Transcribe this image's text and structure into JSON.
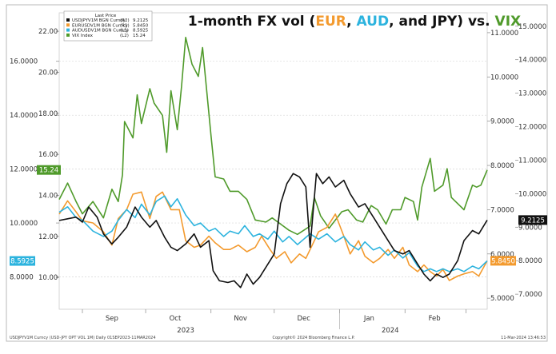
{
  "title": {
    "prefix": "1-month FX vol (",
    "eur": "EUR",
    "sep1": ", ",
    "aud": "AUD",
    "sep2": ", and ",
    "jpy": "JPY",
    "mid": ") vs. ",
    "vix": "VIX",
    "colors": {
      "base": "#111111",
      "eur": "#f39a2e",
      "aud": "#2cb3de",
      "vix": "#4f9a2a"
    }
  },
  "legend": {
    "header": "Last Price",
    "rows": [
      {
        "label": "USDJPYV1M BGN Curncy",
        "axis": "(R2)",
        "value": "9.2125",
        "color": "#111111"
      },
      {
        "label": "EURUSDV1M BGN Curncy",
        "axis": "(R1)",
        "value": "5.8450",
        "color": "#f39a2e"
      },
      {
        "label": "AUDUSDV1M BGN Curncy",
        "axis": "(L1)",
        "value": "8.5925",
        "color": "#2cb3de"
      },
      {
        "label": "VIX Index",
        "axis": "(L2)",
        "value": "15.24",
        "color": "#4f9a2a"
      }
    ]
  },
  "footer": {
    "left": "USDJPYV1M Curncy (USD-JPY OPT VOL 1M)  Daily 01SEP2023-11MAR2024",
    "center": "Copyright© 2024 Bloomberg Finance L.P.",
    "right": "11-Mar-2024 13:46:53"
  },
  "chart_data": {
    "type": "line",
    "x_range": [
      "2023-08-21",
      "2024-03-11"
    ],
    "x_ticks_months": [
      "Sep",
      "Oct",
      "Nov",
      "Dec",
      "Jan",
      "Feb"
    ],
    "x_ticks_years": [
      "2023",
      "2024"
    ],
    "axes": {
      "L1": {
        "ticks": [
          "8.0000",
          "10.0000",
          "12.0000",
          "14.0000",
          "16.0000"
        ],
        "range": [
          6.8,
          17.8
        ]
      },
      "L2": {
        "ticks": [
          "10.00",
          "12.00",
          "14.00",
          "16.00",
          "18.00",
          "20.00",
          "22.00"
        ],
        "range": [
          8.45,
          22.9
        ]
      },
      "R1": {
        "ticks": [
          "5.0000",
          "6.0000",
          "7.0000",
          "8.0000",
          "9.0000",
          "10.0000",
          "11.0000"
        ],
        "range": [
          4.75,
          11.45
        ]
      },
      "R2": {
        "ticks": [
          "7.0000",
          "8.0000",
          "9.0000",
          "10.0000",
          "11.0000",
          "12.0000",
          "13.0000",
          "14.0000",
          "15.0000"
        ],
        "range": [
          6.55,
          15.4
        ]
      }
    },
    "last_value_tags": [
      {
        "series": "VIX Index",
        "axis": "L2",
        "value": "15.24",
        "color": "#4f9a2a"
      },
      {
        "series": "AUDUSDV1M BGN Curncy",
        "axis": "L1",
        "value": "8.5925",
        "color": "#2cb3de"
      },
      {
        "series": "USDJPYV1M BGN Curncy",
        "axis": "R2",
        "value": "9.2125",
        "color": "#111111"
      },
      {
        "series": "EURUSDV1M BGN Curncy",
        "axis": "R1",
        "value": "5.8450",
        "color": "#f39a2e"
      }
    ],
    "series": [
      {
        "name": "VIX Index",
        "axis": "L2",
        "color": "#4f9a2a",
        "points": [
          [
            "2023-08-21",
            13.8
          ],
          [
            "2023-08-25",
            14.6
          ],
          [
            "2023-08-29",
            13.7
          ],
          [
            "2023-09-01",
            13.1
          ],
          [
            "2023-09-06",
            13.7
          ],
          [
            "2023-09-11",
            12.9
          ],
          [
            "2023-09-15",
            14.3
          ],
          [
            "2023-09-18",
            13.7
          ],
          [
            "2023-09-20",
            15.0
          ],
          [
            "2023-09-21",
            17.6
          ],
          [
            "2023-09-25",
            16.8
          ],
          [
            "2023-09-27",
            18.9
          ],
          [
            "2023-09-29",
            17.5
          ],
          [
            "2023-10-03",
            19.2
          ],
          [
            "2023-10-05",
            18.5
          ],
          [
            "2023-10-09",
            17.9
          ],
          [
            "2023-10-11",
            16.1
          ],
          [
            "2023-10-13",
            19.1
          ],
          [
            "2023-10-16",
            17.2
          ],
          [
            "2023-10-18",
            19.3
          ],
          [
            "2023-10-20",
            21.7
          ],
          [
            "2023-10-23",
            20.4
          ],
          [
            "2023-10-26",
            19.8
          ],
          [
            "2023-10-28",
            21.2
          ],
          [
            "2023-11-01",
            16.9
          ],
          [
            "2023-11-03",
            14.9
          ],
          [
            "2023-11-07",
            14.8
          ],
          [
            "2023-11-10",
            14.2
          ],
          [
            "2023-11-14",
            14.2
          ],
          [
            "2023-11-18",
            13.8
          ],
          [
            "2023-11-22",
            12.8
          ],
          [
            "2023-11-27",
            12.7
          ],
          [
            "2023-11-30",
            12.9
          ],
          [
            "2023-12-04",
            12.6
          ],
          [
            "2023-12-08",
            12.3
          ],
          [
            "2023-12-12",
            12.1
          ],
          [
            "2023-12-15",
            12.3
          ],
          [
            "2023-12-18",
            12.5
          ],
          [
            "2023-12-20",
            13.9
          ],
          [
            "2023-12-23",
            13.0
          ],
          [
            "2023-12-27",
            12.4
          ],
          [
            "2024-01-02",
            13.2
          ],
          [
            "2024-01-05",
            13.3
          ],
          [
            "2024-01-09",
            12.8
          ],
          [
            "2024-01-12",
            12.7
          ],
          [
            "2024-01-16",
            13.5
          ],
          [
            "2024-01-19",
            13.3
          ],
          [
            "2024-01-23",
            12.6
          ],
          [
            "2024-01-26",
            13.3
          ],
          [
            "2024-01-30",
            13.3
          ],
          [
            "2024-02-01",
            13.9
          ],
          [
            "2024-02-05",
            13.7
          ],
          [
            "2024-02-07",
            12.8
          ],
          [
            "2024-02-09",
            14.4
          ],
          [
            "2024-02-13",
            15.8
          ],
          [
            "2024-02-15",
            14.2
          ],
          [
            "2024-02-19",
            14.5
          ],
          [
            "2024-02-21",
            15.3
          ],
          [
            "2024-02-23",
            13.9
          ],
          [
            "2024-02-27",
            13.5
          ],
          [
            "2024-02-29",
            13.3
          ],
          [
            "2024-03-04",
            14.5
          ],
          [
            "2024-03-06",
            14.4
          ],
          [
            "2024-03-08",
            14.5
          ],
          [
            "2024-03-11",
            15.24
          ]
        ]
      },
      {
        "name": "EURUSDV1M BGN Curncy",
        "axis": "R1",
        "color": "#f39a2e",
        "points": [
          [
            "2023-08-21",
            6.9
          ],
          [
            "2023-08-25",
            7.2
          ],
          [
            "2023-08-29",
            6.95
          ],
          [
            "2023-09-01",
            6.75
          ],
          [
            "2023-09-06",
            6.7
          ],
          [
            "2023-09-11",
            6.5
          ],
          [
            "2023-09-15",
            6.2
          ],
          [
            "2023-09-18",
            6.8
          ],
          [
            "2023-09-22",
            7.0
          ],
          [
            "2023-09-25",
            7.35
          ],
          [
            "2023-09-29",
            7.4
          ],
          [
            "2023-10-03",
            6.8
          ],
          [
            "2023-10-06",
            7.3
          ],
          [
            "2023-10-09",
            7.4
          ],
          [
            "2023-10-13",
            7.0
          ],
          [
            "2023-10-17",
            7.0
          ],
          [
            "2023-10-20",
            6.3
          ],
          [
            "2023-10-24",
            6.15
          ],
          [
            "2023-10-27",
            6.2
          ],
          [
            "2023-10-31",
            6.4
          ],
          [
            "2023-11-03",
            6.25
          ],
          [
            "2023-11-07",
            6.1
          ],
          [
            "2023-11-10",
            6.1
          ],
          [
            "2023-11-14",
            6.2
          ],
          [
            "2023-11-18",
            6.05
          ],
          [
            "2023-11-22",
            6.15
          ],
          [
            "2023-11-25",
            6.4
          ],
          [
            "2023-11-29",
            6.1
          ],
          [
            "2023-12-02",
            5.9
          ],
          [
            "2023-12-06",
            6.05
          ],
          [
            "2023-12-09",
            5.8
          ],
          [
            "2023-12-13",
            6.0
          ],
          [
            "2023-12-16",
            5.9
          ],
          [
            "2023-12-19",
            6.2
          ],
          [
            "2023-12-22",
            6.5
          ],
          [
            "2023-12-26",
            6.6
          ],
          [
            "2023-12-30",
            6.9
          ],
          [
            "2024-01-03",
            6.4
          ],
          [
            "2024-01-06",
            6.0
          ],
          [
            "2024-01-10",
            6.3
          ],
          [
            "2024-01-13",
            5.95
          ],
          [
            "2024-01-17",
            5.8
          ],
          [
            "2024-01-20",
            5.9
          ],
          [
            "2024-01-24",
            6.1
          ],
          [
            "2024-01-27",
            5.9
          ],
          [
            "2024-01-31",
            6.15
          ],
          [
            "2024-02-03",
            5.75
          ],
          [
            "2024-02-07",
            5.6
          ],
          [
            "2024-02-10",
            5.75
          ],
          [
            "2024-02-13",
            5.6
          ],
          [
            "2024-02-16",
            5.5
          ],
          [
            "2024-02-19",
            5.65
          ],
          [
            "2024-02-22",
            5.4
          ],
          [
            "2024-02-26",
            5.5
          ],
          [
            "2024-02-29",
            5.55
          ],
          [
            "2024-03-04",
            5.6
          ],
          [
            "2024-03-07",
            5.5
          ],
          [
            "2024-03-11",
            5.845
          ]
        ]
      },
      {
        "name": "AUDUSDV1M BGN Curncy",
        "axis": "L1",
        "color": "#2cb3de",
        "points": [
          [
            "2023-08-21",
            10.4
          ],
          [
            "2023-08-25",
            10.6
          ],
          [
            "2023-08-29",
            10.2
          ],
          [
            "2023-09-01",
            10.1
          ],
          [
            "2023-09-06",
            9.7
          ],
          [
            "2023-09-11",
            9.5
          ],
          [
            "2023-09-15",
            9.7
          ],
          [
            "2023-09-18",
            10.1
          ],
          [
            "2023-09-22",
            10.5
          ],
          [
            "2023-09-26",
            10.2
          ],
          [
            "2023-09-29",
            10.7
          ],
          [
            "2023-10-03",
            10.3
          ],
          [
            "2023-10-06",
            10.8
          ],
          [
            "2023-10-10",
            11.0
          ],
          [
            "2023-10-13",
            10.6
          ],
          [
            "2023-10-16",
            10.9
          ],
          [
            "2023-10-20",
            10.3
          ],
          [
            "2023-10-24",
            9.9
          ],
          [
            "2023-10-27",
            10.0
          ],
          [
            "2023-10-31",
            9.7
          ],
          [
            "2023-11-03",
            9.8
          ],
          [
            "2023-11-07",
            9.5
          ],
          [
            "2023-11-10",
            9.7
          ],
          [
            "2023-11-14",
            9.6
          ],
          [
            "2023-11-17",
            9.9
          ],
          [
            "2023-11-21",
            9.5
          ],
          [
            "2023-11-24",
            9.6
          ],
          [
            "2023-11-28",
            9.4
          ],
          [
            "2023-12-01",
            9.7
          ],
          [
            "2023-12-05",
            9.3
          ],
          [
            "2023-12-08",
            9.5
          ],
          [
            "2023-12-12",
            9.2
          ],
          [
            "2023-12-15",
            9.4
          ],
          [
            "2023-12-18",
            9.6
          ],
          [
            "2023-12-22",
            9.4
          ],
          [
            "2023-12-26",
            9.6
          ],
          [
            "2023-12-30",
            9.3
          ],
          [
            "2024-01-03",
            9.5
          ],
          [
            "2024-01-06",
            9.2
          ],
          [
            "2024-01-10",
            9.0
          ],
          [
            "2024-01-13",
            9.3
          ],
          [
            "2024-01-17",
            9.0
          ],
          [
            "2024-01-20",
            9.1
          ],
          [
            "2024-01-24",
            8.8
          ],
          [
            "2024-01-27",
            9.0
          ],
          [
            "2024-01-31",
            8.7
          ],
          [
            "2024-02-03",
            8.9
          ],
          [
            "2024-02-07",
            8.4
          ],
          [
            "2024-02-10",
            8.2
          ],
          [
            "2024-02-13",
            8.3
          ],
          [
            "2024-02-16",
            8.2
          ],
          [
            "2024-02-19",
            8.3
          ],
          [
            "2024-02-22",
            8.2
          ],
          [
            "2024-02-26",
            8.3
          ],
          [
            "2024-02-29",
            8.2
          ],
          [
            "2024-03-04",
            8.4
          ],
          [
            "2024-03-07",
            8.3
          ],
          [
            "2024-03-11",
            8.5925
          ]
        ]
      },
      {
        "name": "USDJPYV1M BGN Curncy",
        "axis": "R2",
        "color": "#111111",
        "points": [
          [
            "2023-08-21",
            9.2
          ],
          [
            "2023-08-25",
            9.25
          ],
          [
            "2023-08-29",
            9.3
          ],
          [
            "2023-09-01",
            9.15
          ],
          [
            "2023-09-04",
            9.6
          ],
          [
            "2023-09-08",
            9.3
          ],
          [
            "2023-09-11",
            8.8
          ],
          [
            "2023-09-15",
            8.5
          ],
          [
            "2023-09-18",
            8.7
          ],
          [
            "2023-09-22",
            9.0
          ],
          [
            "2023-09-26",
            9.6
          ],
          [
            "2023-09-29",
            9.3
          ],
          [
            "2023-10-03",
            9.0
          ],
          [
            "2023-10-06",
            9.2
          ],
          [
            "2023-10-10",
            8.7
          ],
          [
            "2023-10-13",
            8.4
          ],
          [
            "2023-10-16",
            8.3
          ],
          [
            "2023-10-20",
            8.5
          ],
          [
            "2023-10-24",
            8.8
          ],
          [
            "2023-10-27",
            8.4
          ],
          [
            "2023-10-31",
            8.6
          ],
          [
            "2023-11-02",
            7.7
          ],
          [
            "2023-11-05",
            7.4
          ],
          [
            "2023-11-09",
            7.35
          ],
          [
            "2023-11-12",
            7.4
          ],
          [
            "2023-11-15",
            7.2
          ],
          [
            "2023-11-18",
            7.6
          ],
          [
            "2023-11-21",
            7.3
          ],
          [
            "2023-11-24",
            7.5
          ],
          [
            "2023-11-28",
            7.9
          ],
          [
            "2023-12-01",
            8.2
          ],
          [
            "2023-12-04",
            9.7
          ],
          [
            "2023-12-07",
            10.3
          ],
          [
            "2023-12-10",
            10.6
          ],
          [
            "2023-12-13",
            10.5
          ],
          [
            "2023-12-16",
            10.2
          ],
          [
            "2023-12-18",
            8.4
          ],
          [
            "2023-12-21",
            10.6
          ],
          [
            "2023-12-24",
            10.3
          ],
          [
            "2023-12-27",
            10.5
          ],
          [
            "2023-12-30",
            10.2
          ],
          [
            "2024-01-03",
            10.4
          ],
          [
            "2024-01-06",
            10.0
          ],
          [
            "2024-01-10",
            9.6
          ],
          [
            "2024-01-13",
            9.7
          ],
          [
            "2024-01-17",
            9.3
          ],
          [
            "2024-01-20",
            9.0
          ],
          [
            "2024-01-24",
            8.6
          ],
          [
            "2024-01-27",
            8.3
          ],
          [
            "2024-01-31",
            8.2
          ],
          [
            "2024-02-03",
            8.3
          ],
          [
            "2024-02-07",
            7.9
          ],
          [
            "2024-02-10",
            7.6
          ],
          [
            "2024-02-13",
            7.4
          ],
          [
            "2024-02-16",
            7.6
          ],
          [
            "2024-02-19",
            7.5
          ],
          [
            "2024-02-22",
            7.6
          ],
          [
            "2024-02-26",
            8.0
          ],
          [
            "2024-02-29",
            8.6
          ],
          [
            "2024-03-04",
            8.9
          ],
          [
            "2024-03-07",
            8.8
          ],
          [
            "2024-03-11",
            9.2125
          ]
        ]
      }
    ]
  }
}
